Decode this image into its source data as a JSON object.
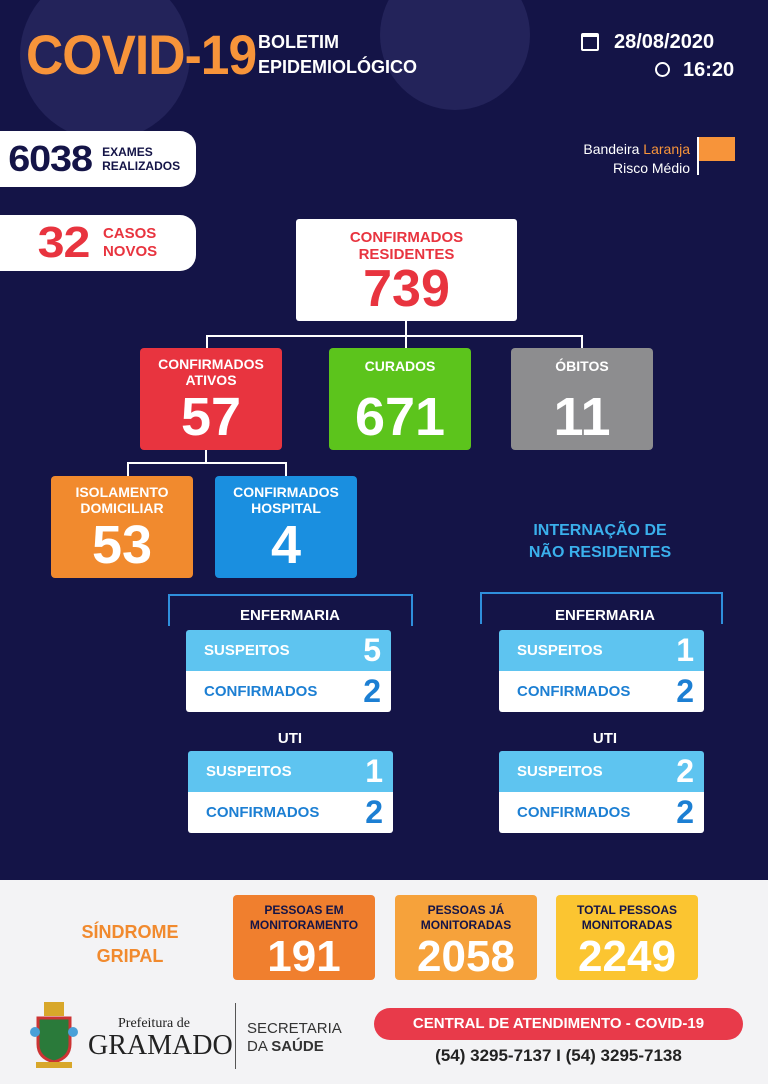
{
  "header": {
    "title": "COVID-19",
    "subtitle1": "BOLETIM",
    "subtitle2": "EPIDEMIOLÓGICO",
    "date": "28/08/2020",
    "time": "16:20"
  },
  "exames": {
    "value": "6038",
    "label1": "EXAMES",
    "label2": "REALIZADOS"
  },
  "casos_novos": {
    "value": "32",
    "label1": "CASOS",
    "label2": "NOVOS"
  },
  "bandeira": {
    "prefix": "Bandeira ",
    "color_word": "Laranja",
    "risk": "Risco Médio",
    "flag_color": "#f7943a"
  },
  "confirmados_residentes": {
    "label1": "CONFIRMADOS",
    "label2": "RESIDENTES",
    "value": "739"
  },
  "ativos": {
    "label1": "CONFIRMADOS",
    "label2": "ATIVOS",
    "value": "57",
    "color": "#e8343f"
  },
  "curados": {
    "label": "CURADOS",
    "value": "671",
    "color": "#5cc41c"
  },
  "obitos": {
    "label": "ÓBITOS",
    "value": "11",
    "color": "#8d8d8f"
  },
  "isolamento": {
    "label1": "ISOLAMENTO",
    "label2": "DOMICILIAR",
    "value": "53",
    "color": "#f18a2e"
  },
  "hospital": {
    "label1": "CONFIRMADOS",
    "label2": "HOSPITAL",
    "value": "4",
    "color": "#1a8fe0"
  },
  "nao_residentes_title": {
    "line1": "INTERNAÇÃO DE",
    "line2": "NÃO RESIDENTES"
  },
  "residentes_hosp": {
    "enfermaria": {
      "label": "ENFERMARIA",
      "suspeitos_label": "SUSPEITOS",
      "suspeitos": "5",
      "confirmados_label": "CONFIRMADOS",
      "confirmados": "2"
    },
    "uti": {
      "label": "UTI",
      "suspeitos_label": "SUSPEITOS",
      "suspeitos": "1",
      "confirmados_label": "CONFIRMADOS",
      "confirmados": "2"
    }
  },
  "nao_residentes": {
    "enfermaria": {
      "label": "ENFERMARIA",
      "suspeitos_label": "SUSPEITOS",
      "suspeitos": "1",
      "confirmados_label": "CONFIRMADOS",
      "confirmados": "2"
    },
    "uti": {
      "label": "UTI",
      "suspeitos_label": "SUSPEITOS",
      "suspeitos": "2",
      "confirmados_label": "CONFIRMADOS",
      "confirmados": "2"
    }
  },
  "sindrome": {
    "line1": "SÍNDROME",
    "line2": "GRIPAL",
    "boxes": [
      {
        "l1": "PESSOAS EM",
        "l2": "MONITORAMENTO",
        "value": "191",
        "color": "#f07f2e"
      },
      {
        "l1": "PESSOAS JÁ",
        "l2": "MONITORADAS",
        "value": "2058",
        "color": "#f6a23b"
      },
      {
        "l1": "TOTAL PESSOAS",
        "l2": "MONITORADAS",
        "value": "2249",
        "color": "#fbc531"
      }
    ]
  },
  "footer": {
    "prefeitura": "Prefeitura de",
    "cidade": "GRAMADO",
    "secretaria1": "SECRETARIA",
    "secretaria2a": "DA ",
    "secretaria2b": "SAÚDE",
    "central": "CENTRAL DE ATENDIMENTO - COVID-19",
    "phones": "(54) 3295-7137 I (54) 3295-7138"
  }
}
